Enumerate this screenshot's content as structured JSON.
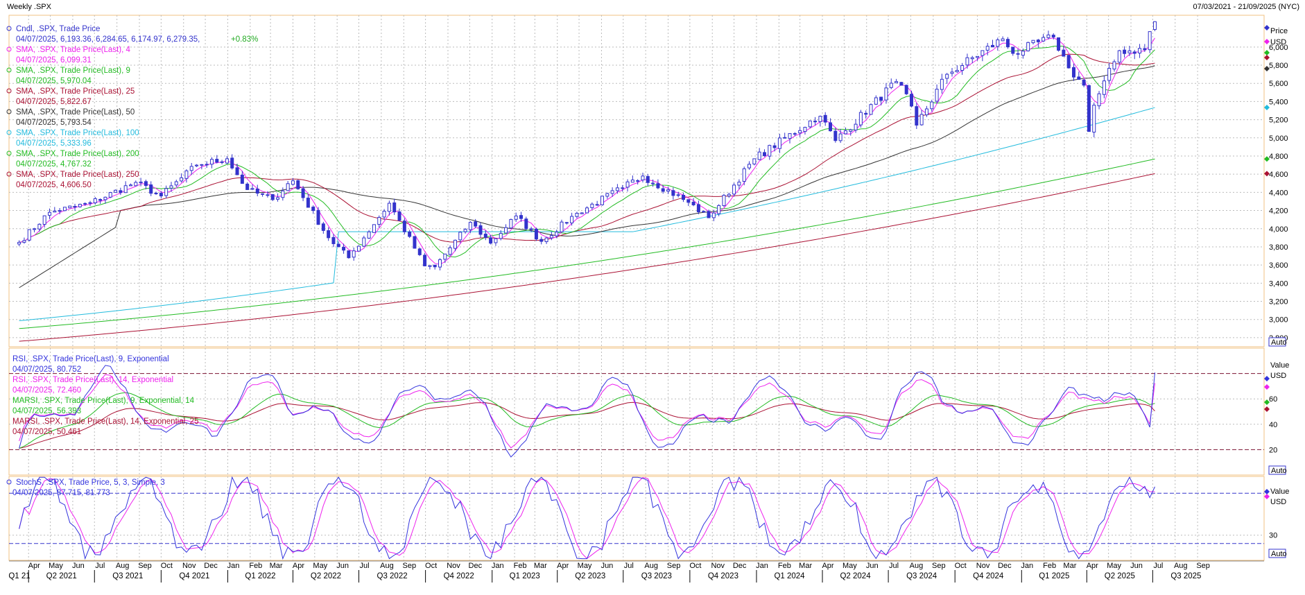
{
  "header": {
    "title": "Weekly .SPX",
    "date_range": "07/03/2021 - 21/09/2025 (NYC)"
  },
  "colors": {
    "up_candle": "#ffffff",
    "down_candle": "#3333cc",
    "sma4": "#ee22ee",
    "sma9": "#22bb22",
    "sma25": "#aa1133",
    "sma50": "#333333",
    "sma100": "#22bbdd",
    "sma200": "#22bb22",
    "sma250": "#aa1133",
    "rsi9": "#3333dd",
    "rsi14": "#ee22ee",
    "marsi9": "#22bb22",
    "marsi14": "#aa1133",
    "stoch_k": "#3333dd",
    "stoch_d": "#ee22ee",
    "grid": "#bbbbbb",
    "frame": "#f0c080"
  },
  "price_panel": {
    "legend": [
      {
        "name": "Cndl, .SPX, Trade Price",
        "value": "04/07/2025, 6,193.36, 6,284.65, 6,174.97, 6,279.35,",
        "change": "+0.83%",
        "color": "#3333cc"
      },
      {
        "name": "SMA, .SPX, Trade Price(Last), 4",
        "value": "04/07/2025, 6,099.31",
        "color": "#ee22ee"
      },
      {
        "name": "SMA, .SPX, Trade Price(Last), 9",
        "value": "04/07/2025, 5,970.04",
        "color": "#22bb22"
      },
      {
        "name": "SMA, .SPX, Trade Price(Last), 25",
        "value": "04/07/2025, 5,822.67",
        "color": "#aa1133"
      },
      {
        "name": "SMA, .SPX, Trade Price(Last), 50",
        "value": "04/07/2025, 5,793.54",
        "color": "#333333"
      },
      {
        "name": "SMA, .SPX, Trade Price(Last), 100",
        "value": "04/07/2025, 5,333.96",
        "color": "#22bbdd"
      },
      {
        "name": "SMA, .SPX, Trade Price(Last), 200",
        "value": "04/07/2025, 4,767.32",
        "color": "#22bb22"
      },
      {
        "name": "SMA, .SPX, Trade Price(Last), 250",
        "value": "04/07/2025, 4,606.50",
        "color": "#aa1133"
      }
    ],
    "axis_ticks": [
      "6,000",
      "5,800",
      "5,600",
      "5,400",
      "5,200",
      "5,000",
      "4,800",
      "4,600",
      "4,400",
      "4,200",
      "4,000",
      "3,800",
      "3,600",
      "3,400",
      "3,200",
      "3,000",
      "2,800"
    ],
    "axis_title": "Price",
    "axis_unit": "USD",
    "auto_label": "Auto"
  },
  "rsi_panel": {
    "legend": [
      {
        "name": "RSI, .SPX, Trade Price(Last), 9, Exponential",
        "value": "04/07/2025, 80.752",
        "color": "#3333dd"
      },
      {
        "name": "RSI, .SPX, Trade Price(Last), 14, Exponential",
        "value": "04/07/2025, 72.460",
        "color": "#ee22ee"
      },
      {
        "name": "MARSI, .SPX, Trade Price(Last), 9, Exponential, 14",
        "value": "04/07/2025, 56.393",
        "color": "#22bb22"
      },
      {
        "name": "MARSI, .SPX, Trade Price(Last), 14, Exponential, 25",
        "value": "04/07/2025, 50.461",
        "color": "#aa1133"
      }
    ],
    "axis_ticks": [
      "60",
      "40",
      "20"
    ],
    "axis_title": "Value",
    "axis_unit": "USD",
    "auto_label": "Auto"
  },
  "stoch_panel": {
    "legend": [
      {
        "name": "StochS, .SPX, Trade Price, 5, 3, Simple, 3",
        "value": "04/07/2025, 87.715, 81.773",
        "color": "#3333dd"
      }
    ],
    "axis_ticks": [
      "30"
    ],
    "axis_title": "Value",
    "axis_unit": "USD",
    "auto_label": "Auto"
  },
  "time_axis": {
    "months": [
      "Apr",
      "May",
      "Jun",
      "Jul",
      "Aug",
      "Sep",
      "Oct",
      "Nov",
      "Dec",
      "Jan",
      "Feb",
      "Mar",
      "Apr",
      "May",
      "Jun",
      "Jul",
      "Aug",
      "Sep",
      "Oct",
      "Nov",
      "Dec",
      "Jan",
      "Feb",
      "Mar",
      "Apr",
      "May",
      "Jun",
      "Jul",
      "Aug",
      "Sep",
      "Oct",
      "Nov",
      "Dec",
      "Jan",
      "Feb",
      "Mar",
      "Apr",
      "May",
      "Jun",
      "Jul",
      "Aug",
      "Sep",
      "Oct",
      "Nov",
      "Dec",
      "Jan",
      "Feb",
      "Mar",
      "Apr",
      "May",
      "Jun",
      "Jul",
      "Aug",
      "Sep"
    ],
    "quarters": [
      "Q1 21",
      "Q2 2021",
      "Q3 2021",
      "Q4 2021",
      "Q1 2022",
      "Q2 2022",
      "Q3 2022",
      "Q4 2022",
      "Q1 2023",
      "Q2 2023",
      "Q3 2023",
      "Q4 2023",
      "Q1 2024",
      "Q2 2024",
      "Q3 2024",
      "Q4 2024",
      "Q1 2025",
      "Q2 2025",
      "Q3 2025"
    ]
  },
  "chart_data": [
    {
      "type": "candlestick",
      "ylim": [
        2700,
        6350
      ],
      "anchors_date_close": [
        [
          "2021-03-19",
          3850
        ],
        [
          "2021-04-30",
          4180
        ],
        [
          "2021-06-25",
          4280
        ],
        [
          "2021-08-27",
          4510
        ],
        [
          "2021-10-01",
          4360
        ],
        [
          "2021-11-19",
          4700
        ],
        [
          "2021-12-31",
          4770
        ],
        [
          "2022-01-28",
          4430
        ],
        [
          "2022-03-04",
          4320
        ],
        [
          "2022-03-31",
          4540
        ],
        [
          "2022-05-20",
          3900
        ],
        [
          "2022-06-17",
          3680
        ],
        [
          "2022-08-12",
          4280
        ],
        [
          "2022-09-30",
          3590
        ],
        [
          "2022-10-14",
          3580
        ],
        [
          "2022-12-02",
          4070
        ],
        [
          "2022-12-30",
          3840
        ],
        [
          "2023-02-03",
          4140
        ],
        [
          "2023-03-10",
          3860
        ],
        [
          "2023-04-28",
          4170
        ],
        [
          "2023-06-30",
          4450
        ],
        [
          "2023-07-28",
          4580
        ],
        [
          "2023-09-29",
          4290
        ],
        [
          "2023-10-27",
          4120
        ],
        [
          "2023-12-29",
          4770
        ],
        [
          "2024-03-28",
          5250
        ],
        [
          "2024-04-19",
          4970
        ],
        [
          "2024-07-12",
          5620
        ],
        [
          "2024-08-02",
          5350
        ],
        [
          "2024-08-09",
          5140
        ],
        [
          "2024-09-20",
          5700
        ],
        [
          "2024-12-06",
          6090
        ],
        [
          "2024-12-20",
          5930
        ],
        [
          "2025-02-14",
          6110
        ],
        [
          "2025-03-07",
          5770
        ],
        [
          "2025-03-28",
          5580
        ],
        [
          "2025-04-04",
          5070
        ],
        [
          "2025-04-11",
          5360
        ],
        [
          "2025-05-16",
          5960
        ],
        [
          "2025-06-20",
          5970
        ],
        [
          "2025-06-27",
          6170
        ],
        [
          "2025-07-04",
          6279.35
        ]
      ],
      "last_candle": {
        "date": "2025-07-04",
        "open": 6193.36,
        "high": 6284.65,
        "low": 6174.97,
        "close": 6279.35,
        "change": "+0.83%"
      },
      "sma_last": {
        "4": 6099.31,
        "9": 5970.04,
        "25": 5822.67,
        "50": 5793.54,
        "100": 5333.96,
        "200": 4767.32,
        "250": 4606.5
      }
    },
    {
      "type": "line",
      "name": "RSI",
      "ylim": [
        0,
        100
      ],
      "reference_lines": [
        80,
        20
      ],
      "last": {
        "rsi9": 80.752,
        "rsi14": 72.46,
        "marsi9": 56.393,
        "marsi14": 50.461
      }
    },
    {
      "type": "line",
      "name": "StochS",
      "ylim": [
        0,
        100
      ],
      "reference_lines": [
        80,
        20
      ],
      "last": {
        "k": 87.715,
        "d": 81.773
      }
    }
  ]
}
